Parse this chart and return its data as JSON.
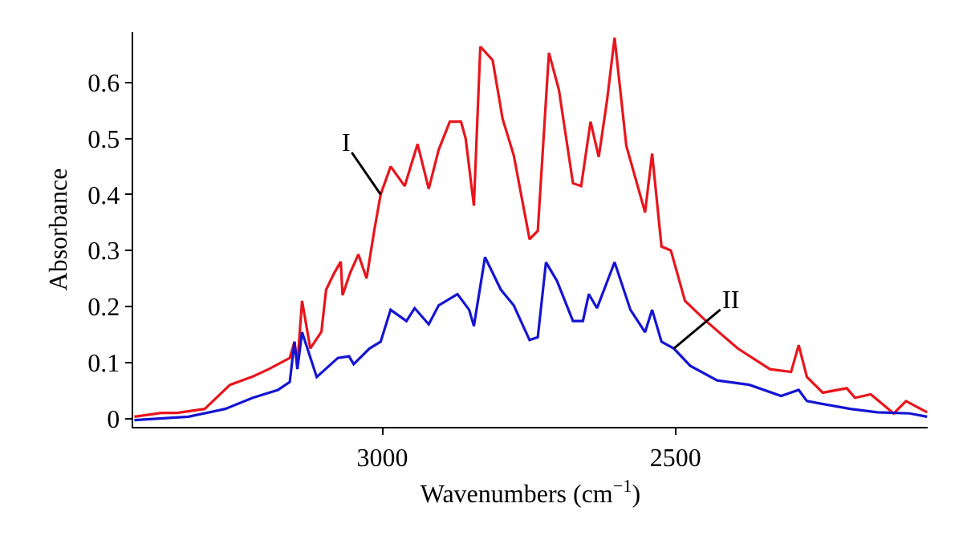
{
  "chart_data": {
    "type": "line",
    "xlabel": "Wavenumbers (cm$^{−1}$)",
    "ylabel": "Absorbance",
    "xlim": [
      3425,
      2070
    ],
    "xticks": [
      3000,
      2500
    ],
    "ylim": [
      -0.015,
      0.69
    ],
    "yticks": [
      0,
      0.1,
      0.2,
      0.3,
      0.4,
      0.5,
      0.6
    ],
    "marker": "none",
    "line_style": "solid",
    "series": [
      {
        "color": "#e8151c",
        "x": [
          3423,
          3377,
          3350,
          3303,
          3260,
          3221,
          3194,
          3158,
          3150,
          3145,
          3137,
          3123,
          3104,
          3096,
          3082,
          3071,
          3068,
          3055,
          3041,
          3027,
          3014,
          3003,
          2986,
          2962,
          2940,
          2921,
          2904,
          2885,
          2866,
          2858,
          2844,
          2833,
          2812,
          2795,
          2776,
          2749,
          2735,
          2716,
          2699,
          2675,
          2661,
          2645,
          2631,
          2617,
          2604,
          2584,
          2552,
          2540,
          2524,
          2508,
          2484,
          2448,
          2394,
          2339,
          2303,
          2290,
          2276,
          2249,
          2208,
          2194,
          2167,
          2128,
          2107,
          2071
        ],
        "values": [
          0.003,
          0.01,
          0.01,
          0.017,
          0.06,
          0.075,
          0.088,
          0.108,
          0.137,
          0.097,
          0.21,
          0.125,
          0.155,
          0.23,
          0.26,
          0.28,
          0.22,
          0.26,
          0.293,
          0.25,
          0.335,
          0.4,
          0.45,
          0.415,
          0.49,
          0.41,
          0.48,
          0.53,
          0.53,
          0.5,
          0.38,
          0.664,
          0.64,
          0.535,
          0.47,
          0.32,
          0.335,
          0.653,
          0.587,
          0.42,
          0.415,
          0.53,
          0.467,
          0.567,
          0.68,
          0.487,
          0.368,
          0.473,
          0.307,
          0.3,
          0.21,
          0.174,
          0.125,
          0.088,
          0.083,
          0.131,
          0.074,
          0.046,
          0.054,
          0.037,
          0.043,
          0.009,
          0.031,
          0.011
        ]
      },
      {
        "color": "#1414d2",
        "x": [
          3423,
          3331,
          3268,
          3221,
          3178,
          3158,
          3150,
          3145,
          3137,
          3112,
          3076,
          3057,
          3049,
          3022,
          3003,
          2986,
          2959,
          2945,
          2921,
          2904,
          2872,
          2852,
          2844,
          2825,
          2798,
          2776,
          2749,
          2735,
          2721,
          2702,
          2675,
          2658,
          2648,
          2634,
          2604,
          2577,
          2552,
          2540,
          2524,
          2503,
          2475,
          2429,
          2374,
          2320,
          2290,
          2276,
          2202,
          2156,
          2101,
          2071
        ],
        "values": [
          -0.003,
          0.003,
          0.017,
          0.037,
          0.051,
          0.065,
          0.137,
          0.088,
          0.154,
          0.074,
          0.108,
          0.111,
          0.097,
          0.125,
          0.137,
          0.194,
          0.174,
          0.197,
          0.168,
          0.202,
          0.222,
          0.194,
          0.165,
          0.288,
          0.23,
          0.202,
          0.14,
          0.145,
          0.279,
          0.245,
          0.174,
          0.174,
          0.222,
          0.197,
          0.279,
          0.194,
          0.154,
          0.194,
          0.137,
          0.125,
          0.094,
          0.068,
          0.06,
          0.04,
          0.051,
          0.031,
          0.017,
          0.011,
          0.009,
          0.003
        ]
      }
    ],
    "annotations": [
      {
        "text": "I",
        "x": 3003,
        "y": 0.4
      },
      {
        "text": "II",
        "x": 2503,
        "y": 0.125
      }
    ]
  }
}
